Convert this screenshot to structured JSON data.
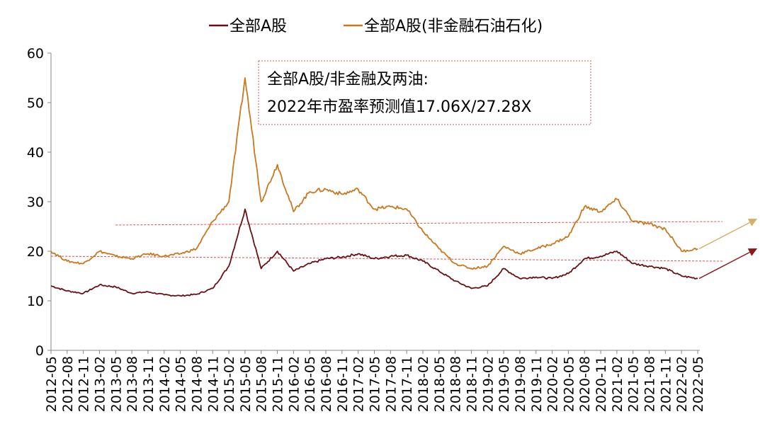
{
  "chart_data": {
    "type": "line",
    "x_dates": [
      "2012-05",
      "2012-08",
      "2012-11",
      "2013-02",
      "2013-05",
      "2013-08",
      "2013-11",
      "2014-02",
      "2014-05",
      "2014-08",
      "2014-11",
      "2015-02",
      "2015-05",
      "2015-08",
      "2015-11",
      "2016-02",
      "2016-05",
      "2016-08",
      "2016-11",
      "2017-02",
      "2017-05",
      "2017-08",
      "2017-11",
      "2018-02",
      "2018-05",
      "2018-08",
      "2018-11",
      "2019-02",
      "2019-05",
      "2019-08",
      "2019-11",
      "2020-02",
      "2020-05",
      "2020-08",
      "2020-11",
      "2021-02",
      "2021-05",
      "2021-08",
      "2021-11",
      "2022-02",
      "2022-05"
    ],
    "yticks": [
      "0",
      "10",
      "20",
      "30",
      "40",
      "50",
      "60"
    ],
    "ylim": [
      0,
      60
    ],
    "series": [
      {
        "name": "全部A股",
        "color": "#6b0f14",
        "values": [
          13.0,
          12.0,
          11.5,
          13.2,
          12.8,
          11.5,
          11.8,
          11.2,
          11.0,
          11.3,
          12.5,
          17.0,
          28.5,
          16.5,
          20.0,
          16.0,
          17.5,
          18.5,
          18.8,
          19.5,
          18.5,
          19.0,
          19.2,
          18.0,
          16.0,
          14.0,
          12.5,
          13.0,
          16.5,
          14.5,
          14.8,
          14.5,
          15.5,
          18.5,
          19.0,
          20.0,
          17.5,
          17.0,
          16.5,
          15.0,
          14.5
        ]
      },
      {
        "name": "全部A股(非金融石油石化)",
        "color": "#c8781e",
        "values": [
          20.0,
          18.0,
          17.5,
          20.0,
          19.0,
          18.5,
          19.5,
          19.0,
          19.5,
          20.5,
          26.0,
          30.0,
          55.0,
          30.0,
          37.5,
          28.0,
          32.0,
          32.5,
          31.5,
          32.5,
          28.5,
          29.0,
          28.5,
          24.0,
          20.5,
          17.5,
          16.5,
          17.0,
          21.0,
          19.5,
          20.5,
          21.5,
          23.0,
          29.0,
          28.0,
          30.5,
          26.0,
          25.5,
          24.5,
          20.0,
          20.5
        ]
      }
    ],
    "reference_lines": [
      {
        "from": "2013-05",
        "to": "2022-05",
        "value_start": 25.3,
        "value_end": 26.0,
        "color": "#e05050"
      },
      {
        "from": "2012-05",
        "to": "2022-05",
        "value_start": 19.0,
        "value_end": 18.0,
        "color": "#e05050"
      }
    ],
    "arrows": [
      {
        "from_value": 20.5,
        "to_value": 26.5,
        "color": "#d4b06a"
      },
      {
        "from_value": 14.5,
        "to_value": 20.5,
        "color": "#8b1a1a"
      }
    ],
    "annotation": {
      "line1": "全部A股/非金融及两油:",
      "line2": "2022年市盈率预测值17.06X/27.28X"
    }
  }
}
